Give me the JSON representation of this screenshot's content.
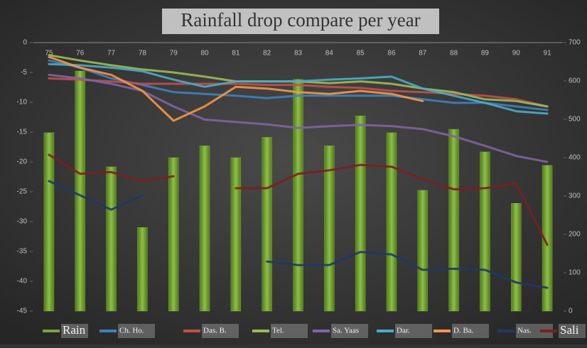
{
  "chart_data": {
    "type": "bar-line",
    "title": "Rainfall drop compare per year",
    "categories": [
      "75",
      "76",
      "77",
      "78",
      "79",
      "80",
      "81",
      "82",
      "83",
      "84",
      "85",
      "86",
      "87",
      "88",
      "89",
      "90",
      "91"
    ],
    "ylim": [
      -45,
      0
    ],
    "yticks": [
      0,
      -5,
      -10,
      -15,
      -20,
      -25,
      -30,
      -35,
      -40,
      -45
    ],
    "y2lim": [
      0,
      700
    ],
    "y2ticks": [
      0,
      100,
      200,
      300,
      400,
      500,
      600,
      700
    ],
    "legend": "bottom",
    "series": [
      {
        "name": "Rain",
        "type": "bar",
        "axis": "y2",
        "color": "#7aa63a",
        "values": [
          465,
          626,
          376,
          218,
          400,
          431,
          400,
          453,
          604,
          431,
          509,
          465,
          315,
          474,
          415,
          281,
          380
        ]
      },
      {
        "name": "Ch. Ho.",
        "type": "line",
        "color": "#3f7fc1",
        "values": [
          -3.0,
          -4.2,
          -6.0,
          -7.1,
          -8.3,
          -8.6,
          -8.9,
          -9.3,
          -8.9,
          -8.9,
          -8.9,
          -8.9,
          -9.5,
          -10.1,
          -10.1,
          -10.7,
          -11.3
        ]
      },
      {
        "name": "Das. B.",
        "type": "line",
        "color": "#c0504d",
        "values": [
          -6.0,
          -6.2,
          -6.5,
          -6.9,
          -6.9,
          -6.9,
          -6.9,
          -7.1,
          -7.1,
          -7.4,
          -7.6,
          -8.1,
          -8.3,
          -8.6,
          -8.9,
          -9.5,
          -10.7
        ]
      },
      {
        "name": "Tel.",
        "type": "line",
        "color": "#9bbb59",
        "values": [
          -2.1,
          -3.0,
          -3.8,
          -4.5,
          -5.0,
          -5.7,
          -6.5,
          -6.5,
          -6.5,
          -6.8,
          -6.5,
          -6.9,
          -7.7,
          -8.3,
          -9.5,
          -9.8,
          -10.7
        ]
      },
      {
        "name": "Sa. Yaas",
        "type": "line",
        "color": "#8064a2",
        "values": [
          -5.4,
          -6.0,
          -6.9,
          -8.1,
          -10.7,
          -12.9,
          -13.3,
          -13.7,
          -14.3,
          -14.0,
          -13.8,
          -14.0,
          -14.5,
          -15.7,
          -17.3,
          -19.0,
          -20.0
        ]
      },
      {
        "name": "Dar.",
        "type": "line",
        "color": "#4bacc6",
        "values": [
          -3.6,
          -3.8,
          -4.2,
          -4.8,
          -6.2,
          -7.4,
          -6.5,
          -6.5,
          -6.5,
          -6.2,
          -6.0,
          -5.7,
          -7.7,
          -8.9,
          -10.1,
          -11.5,
          -11.9
        ]
      },
      {
        "name": "D. Ba.",
        "type": "line",
        "color": "#f79646",
        "values": [
          -2.4,
          -4.2,
          -5.4,
          -8.1,
          -13.1,
          -10.7,
          -7.4,
          -7.7,
          -8.3,
          -8.6,
          -8.1,
          -8.6,
          -9.8,
          null,
          null,
          null,
          null
        ]
      },
      {
        "name": "Nas.",
        "type": "line",
        "color": "#1f3864",
        "values": [
          -23.2,
          -25.6,
          -28.0,
          -25.6,
          null,
          null,
          null,
          -36.7,
          -37.3,
          -37.3,
          -35.1,
          -35.5,
          -38.1,
          -37.9,
          -38.1,
          -40.2,
          -41.1
        ]
      },
      {
        "name": "Sali",
        "type": "line",
        "color": "#7b1f1f",
        "values": [
          -18.8,
          -22.0,
          -21.7,
          -23.2,
          -22.4,
          null,
          -24.4,
          -24.4,
          -22.0,
          -21.4,
          -20.5,
          -20.8,
          -22.9,
          -24.6,
          -24.4,
          -23.6,
          -33.9
        ]
      }
    ]
  }
}
